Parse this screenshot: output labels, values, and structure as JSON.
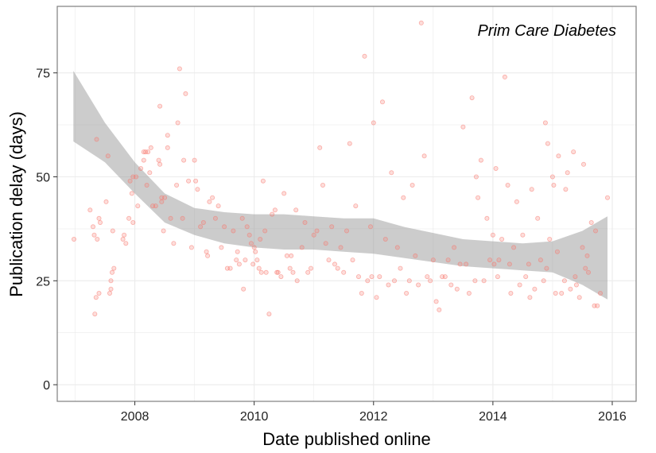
{
  "chart_data": {
    "type": "scatter",
    "title": "",
    "annotation": "Prim Care Diabetes",
    "xlabel": "Date published online",
    "ylabel": "Publication delay (days)",
    "xlim": [
      2006.7,
      2016.4
    ],
    "ylim": [
      -4,
      91
    ],
    "x_ticks": [
      2008,
      2010,
      2012,
      2014,
      2016
    ],
    "x_tick_labels": [
      "2008",
      "2010",
      "2012",
      "2014",
      "2016"
    ],
    "y_ticks": [
      0,
      25,
      50,
      75
    ],
    "y_tick_labels": [
      "0",
      "25",
      "50",
      "75"
    ],
    "grid": true,
    "legend": "none",
    "colors": {
      "points": "#f8766d",
      "ribbon": "#999999",
      "panel_border": "#7f7f7f",
      "grid": "#ebebeb"
    },
    "smooth": {
      "x": [
        2006.97,
        2007.5,
        2008.0,
        2008.5,
        2009.0,
        2009.5,
        2010.0,
        2010.5,
        2011.0,
        2011.5,
        2012.0,
        2012.5,
        2013.0,
        2013.5,
        2014.0,
        2014.5,
        2015.0,
        2015.5,
        2015.92
      ],
      "lower": [
        58.5,
        53.5,
        46.0,
        39.0,
        36.0,
        34.0,
        33.0,
        32.5,
        32.5,
        32.0,
        31.5,
        30.5,
        29.5,
        28.5,
        28.0,
        27.5,
        27.0,
        24.0,
        20.5
      ],
      "upper": [
        75.5,
        63.0,
        53.5,
        46.0,
        42.5,
        41.5,
        41.0,
        41.0,
        40.5,
        40.0,
        40.0,
        38.0,
        36.5,
        35.0,
        34.5,
        34.0,
        34.5,
        37.0,
        40.5
      ]
    },
    "points": [
      [
        2006.98,
        35
      ],
      [
        2007.25,
        42
      ],
      [
        2007.3,
        38
      ],
      [
        2007.32,
        36
      ],
      [
        2007.33,
        17
      ],
      [
        2007.35,
        21
      ],
      [
        2007.36,
        59
      ],
      [
        2007.37,
        35
      ],
      [
        2007.4,
        22
      ],
      [
        2007.4,
        40
      ],
      [
        2007.42,
        39
      ],
      [
        2007.52,
        44
      ],
      [
        2007.55,
        55
      ],
      [
        2007.58,
        22
      ],
      [
        2007.6,
        23
      ],
      [
        2007.6,
        25
      ],
      [
        2007.62,
        27
      ],
      [
        2007.63,
        37
      ],
      [
        2007.65,
        28
      ],
      [
        2007.8,
        35
      ],
      [
        2007.82,
        36
      ],
      [
        2007.85,
        34
      ],
      [
        2007.9,
        40
      ],
      [
        2007.92,
        49
      ],
      [
        2007.95,
        46
      ],
      [
        2007.97,
        39
      ],
      [
        2007.97,
        50
      ],
      [
        2008.02,
        50
      ],
      [
        2008.05,
        43
      ],
      [
        2008.1,
        52
      ],
      [
        2008.15,
        54
      ],
      [
        2008.15,
        56
      ],
      [
        2008.18,
        56
      ],
      [
        2008.2,
        48
      ],
      [
        2008.22,
        56
      ],
      [
        2008.25,
        51
      ],
      [
        2008.27,
        57
      ],
      [
        2008.3,
        43
      ],
      [
        2008.35,
        43
      ],
      [
        2008.4,
        54
      ],
      [
        2008.42,
        53
      ],
      [
        2008.42,
        67
      ],
      [
        2008.45,
        44
      ],
      [
        2008.45,
        45
      ],
      [
        2008.48,
        37
      ],
      [
        2008.5,
        45
      ],
      [
        2008.55,
        57
      ],
      [
        2008.55,
        60
      ],
      [
        2008.6,
        40
      ],
      [
        2008.65,
        34
      ],
      [
        2008.7,
        48
      ],
      [
        2008.72,
        63
      ],
      [
        2008.75,
        76
      ],
      [
        2008.8,
        40
      ],
      [
        2008.82,
        54
      ],
      [
        2008.85,
        70
      ],
      [
        2008.9,
        49
      ],
      [
        2008.95,
        33
      ],
      [
        2009.0,
        54
      ],
      [
        2009.02,
        49
      ],
      [
        2009.05,
        47
      ],
      [
        2009.1,
        38
      ],
      [
        2009.15,
        39
      ],
      [
        2009.2,
        32
      ],
      [
        2009.22,
        31
      ],
      [
        2009.25,
        44
      ],
      [
        2009.3,
        45
      ],
      [
        2009.35,
        40
      ],
      [
        2009.4,
        43
      ],
      [
        2009.45,
        33
      ],
      [
        2009.5,
        38
      ],
      [
        2009.55,
        28
      ],
      [
        2009.6,
        28
      ],
      [
        2009.65,
        37
      ],
      [
        2009.7,
        30
      ],
      [
        2009.72,
        32
      ],
      [
        2009.75,
        29
      ],
      [
        2009.8,
        40
      ],
      [
        2009.82,
        23
      ],
      [
        2009.85,
        30
      ],
      [
        2009.88,
        38
      ],
      [
        2009.92,
        36
      ],
      [
        2009.95,
        34
      ],
      [
        2009.98,
        29
      ],
      [
        2010.0,
        33
      ],
      [
        2010.02,
        32
      ],
      [
        2010.05,
        30
      ],
      [
        2010.08,
        28
      ],
      [
        2010.1,
        35
      ],
      [
        2010.12,
        27
      ],
      [
        2010.15,
        49
      ],
      [
        2010.18,
        37
      ],
      [
        2010.2,
        27
      ],
      [
        2010.25,
        17
      ],
      [
        2010.3,
        41
      ],
      [
        2010.35,
        42
      ],
      [
        2010.38,
        27
      ],
      [
        2010.4,
        27
      ],
      [
        2010.45,
        26
      ],
      [
        2010.5,
        46
      ],
      [
        2010.55,
        31
      ],
      [
        2010.6,
        28
      ],
      [
        2010.62,
        31
      ],
      [
        2010.65,
        27
      ],
      [
        2010.7,
        42
      ],
      [
        2010.72,
        25
      ],
      [
        2010.8,
        33
      ],
      [
        2010.85,
        39
      ],
      [
        2010.9,
        27
      ],
      [
        2010.95,
        28
      ],
      [
        2011.0,
        36
      ],
      [
        2011.05,
        37
      ],
      [
        2011.1,
        57
      ],
      [
        2011.15,
        48
      ],
      [
        2011.2,
        34
      ],
      [
        2011.25,
        30
      ],
      [
        2011.3,
        38
      ],
      [
        2011.35,
        29
      ],
      [
        2011.4,
        28
      ],
      [
        2011.45,
        33
      ],
      [
        2011.5,
        27
      ],
      [
        2011.55,
        37
      ],
      [
        2011.6,
        58
      ],
      [
        2011.65,
        30
      ],
      [
        2011.7,
        43
      ],
      [
        2011.75,
        26
      ],
      [
        2011.8,
        22
      ],
      [
        2011.85,
        79
      ],
      [
        2011.9,
        25
      ],
      [
        2011.95,
        38
      ],
      [
        2011.97,
        26
      ],
      [
        2012.0,
        63
      ],
      [
        2012.05,
        21
      ],
      [
        2012.1,
        26
      ],
      [
        2012.15,
        68
      ],
      [
        2012.2,
        35
      ],
      [
        2012.25,
        24
      ],
      [
        2012.3,
        51
      ],
      [
        2012.35,
        25
      ],
      [
        2012.4,
        33
      ],
      [
        2012.45,
        28
      ],
      [
        2012.5,
        45
      ],
      [
        2012.55,
        22
      ],
      [
        2012.6,
        25
      ],
      [
        2012.65,
        48
      ],
      [
        2012.7,
        31
      ],
      [
        2012.75,
        24
      ],
      [
        2012.8,
        87
      ],
      [
        2012.85,
        55
      ],
      [
        2012.9,
        26
      ],
      [
        2012.95,
        25
      ],
      [
        2013.0,
        30
      ],
      [
        2013.05,
        20
      ],
      [
        2013.1,
        18
      ],
      [
        2013.15,
        26
      ],
      [
        2013.2,
        26
      ],
      [
        2013.25,
        30
      ],
      [
        2013.3,
        24
      ],
      [
        2013.35,
        33
      ],
      [
        2013.4,
        23
      ],
      [
        2013.45,
        29
      ],
      [
        2013.5,
        62
      ],
      [
        2013.55,
        29
      ],
      [
        2013.6,
        22
      ],
      [
        2013.65,
        69
      ],
      [
        2013.7,
        25
      ],
      [
        2013.72,
        50
      ],
      [
        2013.75,
        45
      ],
      [
        2013.8,
        54
      ],
      [
        2013.85,
        25
      ],
      [
        2013.9,
        40
      ],
      [
        2013.95,
        30
      ],
      [
        2014.0,
        36
      ],
      [
        2014.02,
        29
      ],
      [
        2014.05,
        52
      ],
      [
        2014.08,
        26
      ],
      [
        2014.1,
        30
      ],
      [
        2014.15,
        35
      ],
      [
        2014.2,
        74
      ],
      [
        2014.25,
        48
      ],
      [
        2014.28,
        29
      ],
      [
        2014.3,
        22
      ],
      [
        2014.35,
        33
      ],
      [
        2014.4,
        44
      ],
      [
        2014.45,
        24
      ],
      [
        2014.5,
        36
      ],
      [
        2014.55,
        26
      ],
      [
        2014.6,
        29
      ],
      [
        2014.62,
        21
      ],
      [
        2014.65,
        47
      ],
      [
        2014.7,
        23
      ],
      [
        2014.75,
        40
      ],
      [
        2014.8,
        30
      ],
      [
        2014.85,
        25
      ],
      [
        2014.88,
        63
      ],
      [
        2014.9,
        28
      ],
      [
        2014.92,
        58
      ],
      [
        2014.95,
        35
      ],
      [
        2015.0,
        50
      ],
      [
        2015.02,
        48
      ],
      [
        2015.05,
        22
      ],
      [
        2015.08,
        32
      ],
      [
        2015.1,
        55
      ],
      [
        2015.15,
        22
      ],
      [
        2015.2,
        25
      ],
      [
        2015.22,
        47
      ],
      [
        2015.25,
        51
      ],
      [
        2015.3,
        23
      ],
      [
        2015.35,
        56
      ],
      [
        2015.38,
        26
      ],
      [
        2015.4,
        24
      ],
      [
        2015.45,
        21
      ],
      [
        2015.5,
        33
      ],
      [
        2015.52,
        53
      ],
      [
        2015.55,
        28
      ],
      [
        2015.58,
        31
      ],
      [
        2015.6,
        27
      ],
      [
        2015.65,
        39
      ],
      [
        2015.7,
        19
      ],
      [
        2015.72,
        37
      ],
      [
        2015.75,
        19
      ],
      [
        2015.8,
        22
      ],
      [
        2015.92,
        45
      ]
    ]
  }
}
